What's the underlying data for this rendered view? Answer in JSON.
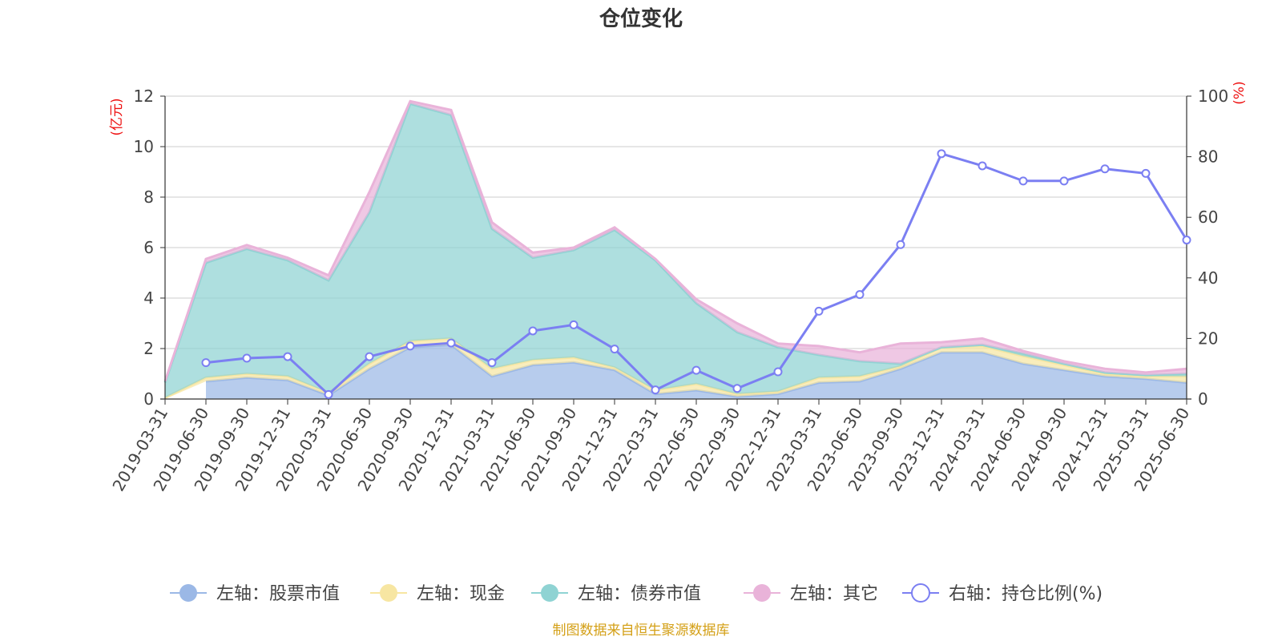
{
  "chart_data": {
    "type": "area",
    "title": "仓位变化",
    "left_axis_unit": "(亿元)",
    "right_axis_unit": "(%)",
    "left_ylim": [
      0,
      12
    ],
    "left_ticks": [
      "0",
      "2",
      "4",
      "6",
      "8",
      "10",
      "12"
    ],
    "right_ylim": [
      0,
      100
    ],
    "right_ticks": [
      "0",
      "20",
      "40",
      "60",
      "80",
      "100"
    ],
    "grid": true,
    "legend_position": "bottom",
    "categories": [
      "2019-03-31",
      "2019-06-30",
      "2019-09-30",
      "2019-12-31",
      "2020-03-31",
      "2020-06-30",
      "2020-09-30",
      "2020-12-31",
      "2021-03-31",
      "2021-06-30",
      "2021-09-30",
      "2021-12-31",
      "2022-03-31",
      "2022-06-30",
      "2022-09-30",
      "2022-12-31",
      "2023-03-31",
      "2023-06-30",
      "2023-09-30",
      "2023-12-31",
      "2024-03-31",
      "2024-06-30",
      "2024-09-30",
      "2024-12-31",
      "2025-03-31",
      "2025-06-30"
    ],
    "series": [
      {
        "name": "左轴：股票市值",
        "axis": "left",
        "stacked": true,
        "color": "#9bb8e6",
        "values": [
          null,
          0.7,
          0.85,
          0.75,
          0.15,
          1.2,
          2.05,
          2.15,
          0.9,
          1.35,
          1.45,
          1.15,
          0.2,
          0.35,
          0.1,
          0.2,
          0.65,
          0.7,
          1.2,
          1.85,
          1.85,
          1.4,
          1.15,
          0.9,
          0.8,
          0.65
        ]
      },
      {
        "name": "左轴：现金",
        "axis": "left",
        "stacked": true,
        "color": "#f7e6a2",
        "values": [
          0.05,
          0.15,
          0.15,
          0.15,
          0.1,
          0.2,
          0.25,
          0.25,
          0.3,
          0.2,
          0.2,
          0.1,
          0.15,
          0.25,
          0.1,
          0.1,
          0.2,
          0.2,
          0.1,
          0.2,
          0.25,
          0.3,
          0.2,
          0.1,
          0.1,
          0.25
        ]
      },
      {
        "name": "左轴：债券市值",
        "axis": "left",
        "stacked": true,
        "color": "#8fd3d3",
        "values": [
          0.6,
          4.55,
          4.95,
          4.6,
          4.45,
          6.0,
          9.4,
          8.85,
          5.55,
          4.05,
          4.25,
          5.45,
          5.15,
          3.2,
          2.45,
          1.75,
          0.9,
          0.6,
          0.1,
          0.0,
          0.05,
          0.1,
          0.05,
          0.05,
          0.05,
          0.1
        ]
      },
      {
        "name": "左轴：其它",
        "axis": "left",
        "stacked": true,
        "color": "#e9b3d9",
        "values": [
          0.05,
          0.15,
          0.15,
          0.1,
          0.2,
          0.8,
          0.1,
          0.2,
          0.25,
          0.2,
          0.1,
          0.1,
          0.05,
          0.15,
          0.35,
          0.15,
          0.35,
          0.35,
          0.8,
          0.2,
          0.25,
          0.1,
          0.1,
          0.15,
          0.1,
          0.2
        ]
      },
      {
        "name": "右轴：持仓比例(%)",
        "axis": "right",
        "type": "line",
        "color": "#7b7ff2",
        "values": [
          null,
          12.0,
          13.5,
          14.0,
          1.5,
          14.0,
          17.5,
          18.5,
          12.0,
          22.5,
          24.5,
          16.5,
          3.0,
          9.5,
          3.5,
          9.0,
          29.0,
          34.5,
          51.0,
          81.0,
          77.0,
          72.0,
          72.0,
          76.0,
          74.5,
          52.5
        ]
      }
    ],
    "source": "制图数据来自恒生聚源数据库"
  }
}
